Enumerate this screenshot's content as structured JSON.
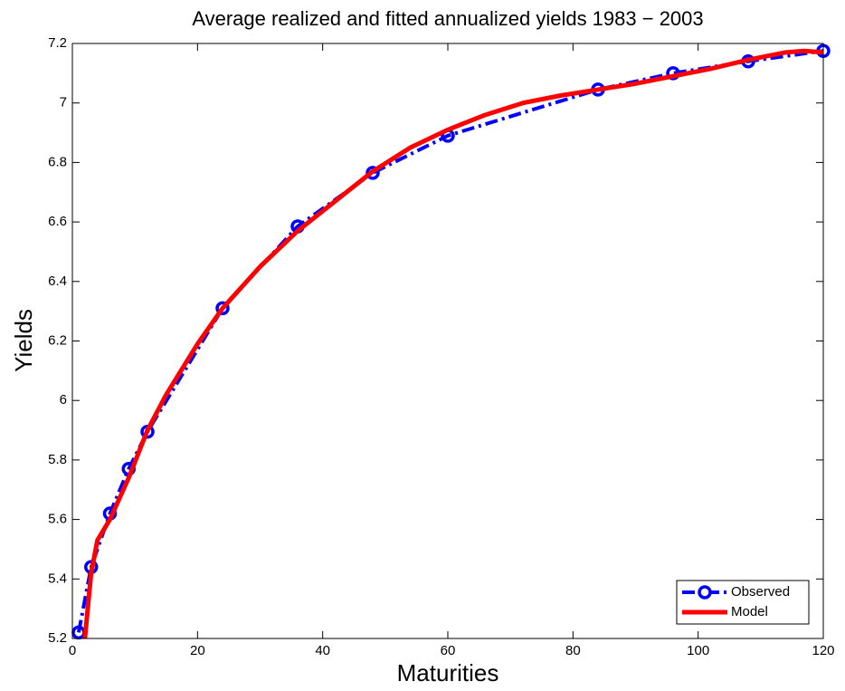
{
  "chart_data": {
    "type": "line",
    "title": "Average realized and fitted annualized yields 1983 − 2003",
    "x_label": "Maturities",
    "y_label": "Yields",
    "xlim": [
      0,
      120
    ],
    "xticks": [
      0,
      20,
      40,
      60,
      80,
      100,
      120
    ],
    "ylim": [
      5.2,
      7.2
    ],
    "yticks": [
      5.2,
      5.4,
      5.6,
      5.8,
      6,
      6.2,
      6.4,
      6.6,
      6.8,
      7,
      7.2
    ],
    "grid": false,
    "legend_loc": "lower right",
    "series": [
      {
        "name": "Observed",
        "color": "#0000ff",
        "style": "dashdot",
        "marker": "circle",
        "x": [
          1,
          3,
          6,
          9,
          12,
          24,
          36,
          48,
          60,
          84,
          96,
          108,
          120
        ],
        "values": [
          5.22,
          5.44,
          5.62,
          5.77,
          5.895,
          6.31,
          6.585,
          6.765,
          6.89,
          7.045,
          7.1,
          7.14,
          7.175
        ]
      },
      {
        "name": "Model",
        "color": "#ff0000",
        "style": "solid",
        "marker": "none",
        "x": [
          2,
          3,
          4,
          6,
          9,
          12,
          15,
          20,
          24,
          30,
          36,
          42,
          48,
          54,
          60,
          66,
          72,
          78,
          84,
          90,
          96,
          102,
          108,
          114,
          117,
          120
        ],
        "values": [
          5.2,
          5.42,
          5.53,
          5.6,
          5.74,
          5.9,
          6.02,
          6.19,
          6.31,
          6.45,
          6.57,
          6.67,
          6.77,
          6.85,
          6.91,
          6.96,
          7.0,
          7.025,
          7.045,
          7.065,
          7.09,
          7.115,
          7.145,
          7.17,
          7.175,
          7.17
        ]
      }
    ]
  }
}
